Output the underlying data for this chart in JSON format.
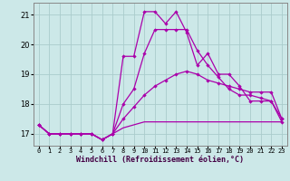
{
  "xlabel": "Windchill (Refroidissement éolien,°C)",
  "background_color": "#cce8e8",
  "grid_color": "#aacccc",
  "line_color": "#aa00aa",
  "hours": [
    0,
    1,
    2,
    3,
    4,
    5,
    6,
    7,
    8,
    9,
    10,
    11,
    12,
    13,
    14,
    15,
    16,
    17,
    18,
    19,
    20,
    21,
    22,
    23
  ],
  "series1": [
    17.3,
    17.0,
    17.0,
    17.0,
    17.0,
    17.0,
    16.8,
    17.0,
    19.6,
    19.6,
    21.1,
    21.1,
    20.7,
    21.1,
    20.4,
    19.3,
    19.7,
    19.0,
    19.0,
    18.6,
    18.1,
    18.1,
    18.1,
    17.4
  ],
  "series2": [
    17.3,
    17.0,
    17.0,
    17.0,
    17.0,
    17.0,
    16.8,
    17.0,
    18.0,
    18.5,
    19.7,
    20.5,
    20.5,
    20.5,
    20.5,
    19.8,
    19.3,
    18.9,
    18.5,
    18.3,
    18.3,
    18.2,
    18.1,
    17.5
  ],
  "series3": [
    17.3,
    17.0,
    17.0,
    17.0,
    17.0,
    17.0,
    16.8,
    17.0,
    17.5,
    17.9,
    18.3,
    18.6,
    18.8,
    19.0,
    19.1,
    19.0,
    18.8,
    18.7,
    18.6,
    18.5,
    18.4,
    18.4,
    18.4,
    17.5
  ],
  "series4": [
    17.3,
    17.0,
    17.0,
    17.0,
    17.0,
    17.0,
    16.8,
    17.0,
    17.2,
    17.3,
    17.4,
    17.4,
    17.4,
    17.4,
    17.4,
    17.4,
    17.4,
    17.4,
    17.4,
    17.4,
    17.4,
    17.4,
    17.4,
    17.4
  ],
  "ylim": [
    16.6,
    21.4
  ],
  "xlim": [
    -0.5,
    23.5
  ],
  "yticks": [
    17,
    18,
    19,
    20,
    21
  ],
  "xtick_labels": [
    "0",
    "1",
    "2",
    "3",
    "4",
    "5",
    "6",
    "7",
    "8",
    "9",
    "10",
    "11",
    "12",
    "13",
    "14",
    "15",
    "16",
    "17",
    "18",
    "19",
    "20",
    "21",
    "22",
    "23"
  ]
}
